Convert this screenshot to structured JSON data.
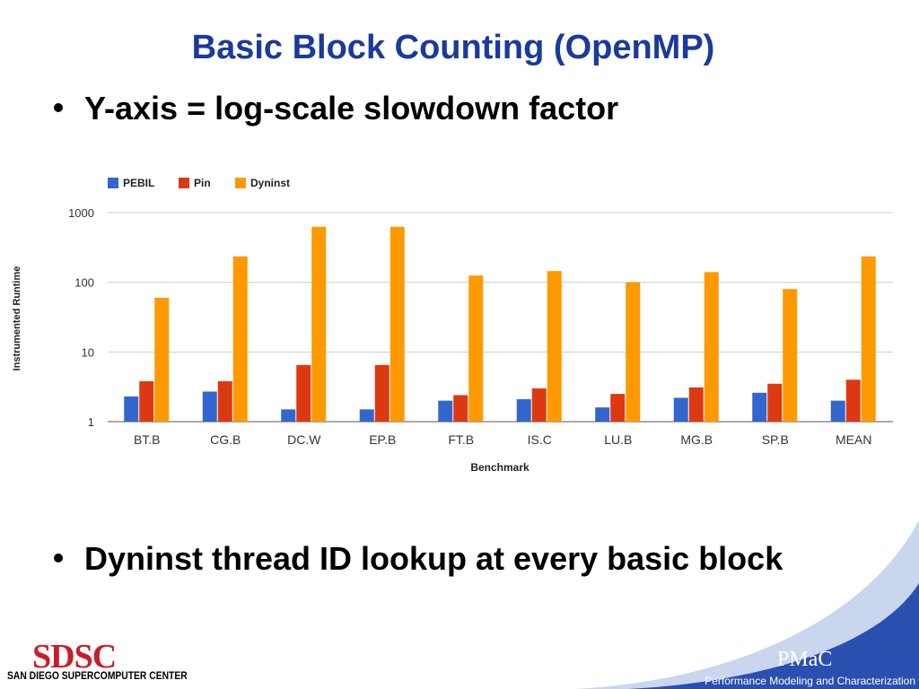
{
  "slide": {
    "title": "Basic Block Counting (OpenMP)",
    "bullets": [
      "Y-axis = log-scale slowdown factor",
      "Dyninst thread ID lookup at every basic block"
    ]
  },
  "footer": {
    "left_logo_text": "SDSC",
    "left_logo_subtitle": "SAN DIEGO SUPERCOMPUTER CENTER",
    "right_logo_text": "PMaC",
    "right_logo_subtitle": "Performance Modeling and Characterization"
  },
  "colors": {
    "title": "#1a3a9c",
    "pebil": "#3366cc",
    "pin": "#dc3912",
    "dyninst": "#ff9900",
    "corner_wave": "#2a4fb0"
  },
  "chart_data": {
    "type": "bar",
    "yscale": "log",
    "ylim": [
      1,
      1000
    ],
    "yticks": [
      "1",
      "10",
      "100",
      "1000"
    ],
    "grid": true,
    "legend_position": "top-left",
    "xlabel": "Benchmark",
    "ylabel": "Instrumented Runtime",
    "categories": [
      "BT.B",
      "CG.B",
      "DC.W",
      "EP.B",
      "FT.B",
      "IS.C",
      "LU.B",
      "MG.B",
      "SP.B",
      "MEAN"
    ],
    "series": [
      {
        "name": "PEBIL",
        "values": [
          2.3,
          2.7,
          1.5,
          1.5,
          2.0,
          2.1,
          1.6,
          2.2,
          2.6,
          2.0
        ]
      },
      {
        "name": "Pin",
        "values": [
          3.8,
          3.8,
          6.5,
          6.5,
          2.4,
          3.0,
          2.5,
          3.1,
          3.5,
          4.0
        ]
      },
      {
        "name": "Dyninst",
        "values": [
          60,
          235,
          625,
          625,
          125,
          145,
          100,
          140,
          80,
          235
        ]
      }
    ]
  }
}
